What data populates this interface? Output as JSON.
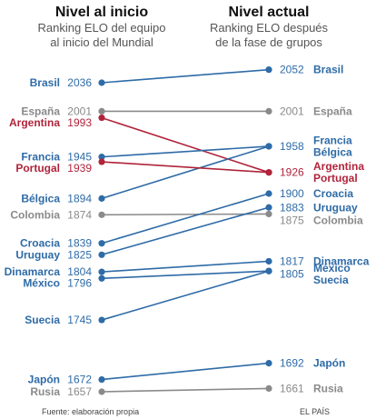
{
  "chart_data": {
    "type": "line",
    "header": {
      "left_title": "Nivel al inicio",
      "left_subtitle_1": "Ranking ELO del equipo",
      "left_subtitle_2": "al inicio del Mundial",
      "right_title": "Nivel actual",
      "right_subtitle_1": "Ranking ELO después",
      "right_subtitle_2": "de la fase de grupos"
    },
    "footer": {
      "source": "Fuente: elaboración propia",
      "credit": "EL PAÍS"
    },
    "colors": {
      "up": "#2e6ba7",
      "down": "#b0243b",
      "same": "#8a8a8a"
    },
    "y_range": [
      1640,
      2060
    ],
    "series": [
      {
        "name": "Brasil",
        "start": 2036,
        "end": 2052,
        "trend": "up"
      },
      {
        "name": "España",
        "start": 2001,
        "end": 2001,
        "trend": "same"
      },
      {
        "name": "Argentina",
        "start": 1993,
        "end": 1926,
        "trend": "down"
      },
      {
        "name": "Francia",
        "start": 1945,
        "end": 1958,
        "trend": "up"
      },
      {
        "name": "Bélgica",
        "start": 1894,
        "end": 1958,
        "trend": "up"
      },
      {
        "name": "Portugal",
        "start": 1939,
        "end": 1926,
        "trend": "down"
      },
      {
        "name": "Colombia",
        "start": 1874,
        "end": 1875,
        "trend": "same"
      },
      {
        "name": "Croacia",
        "start": 1839,
        "end": 1900,
        "trend": "up"
      },
      {
        "name": "Uruguay",
        "start": 1825,
        "end": 1883,
        "trend": "up"
      },
      {
        "name": "Dinamarca",
        "start": 1804,
        "end": 1817,
        "trend": "up"
      },
      {
        "name": "México",
        "start": 1796,
        "end": 1805,
        "trend": "up"
      },
      {
        "name": "Suecia",
        "start": 1745,
        "end": 1805,
        "trend": "up"
      },
      {
        "name": "Japón",
        "start": 1672,
        "end": 1692,
        "trend": "up"
      },
      {
        "name": "Rusia",
        "start": 1657,
        "end": 1661,
        "trend": "same"
      }
    ],
    "right_labels": [
      {
        "value": "2052",
        "names": [
          "Brasil"
        ],
        "trend": "up"
      },
      {
        "value": "2001",
        "names": [
          "España"
        ],
        "trend": "same"
      },
      {
        "value": "1958",
        "names": [
          "Francia",
          "Bélgica"
        ],
        "trend": "up"
      },
      {
        "value": "1926",
        "names": [
          "Argentina",
          "Portugal"
        ],
        "trend": "down"
      },
      {
        "value": "1900",
        "names": [
          "Croacia"
        ],
        "trend": "up"
      },
      {
        "value": "1883",
        "names": [
          "Uruguay"
        ],
        "trend": "up"
      },
      {
        "value": "1875",
        "names": [
          "Colombia"
        ],
        "trend": "same"
      },
      {
        "value": "1817",
        "names": [
          "Dinamarca"
        ],
        "trend": "up"
      },
      {
        "value": "1805",
        "names": [
          "México",
          "Suecia"
        ],
        "trend": "up"
      },
      {
        "value": "1692",
        "names": [
          "Japón"
        ],
        "trend": "up"
      },
      {
        "value": "1661",
        "names": [
          "Rusia"
        ],
        "trend": "same"
      }
    ]
  }
}
